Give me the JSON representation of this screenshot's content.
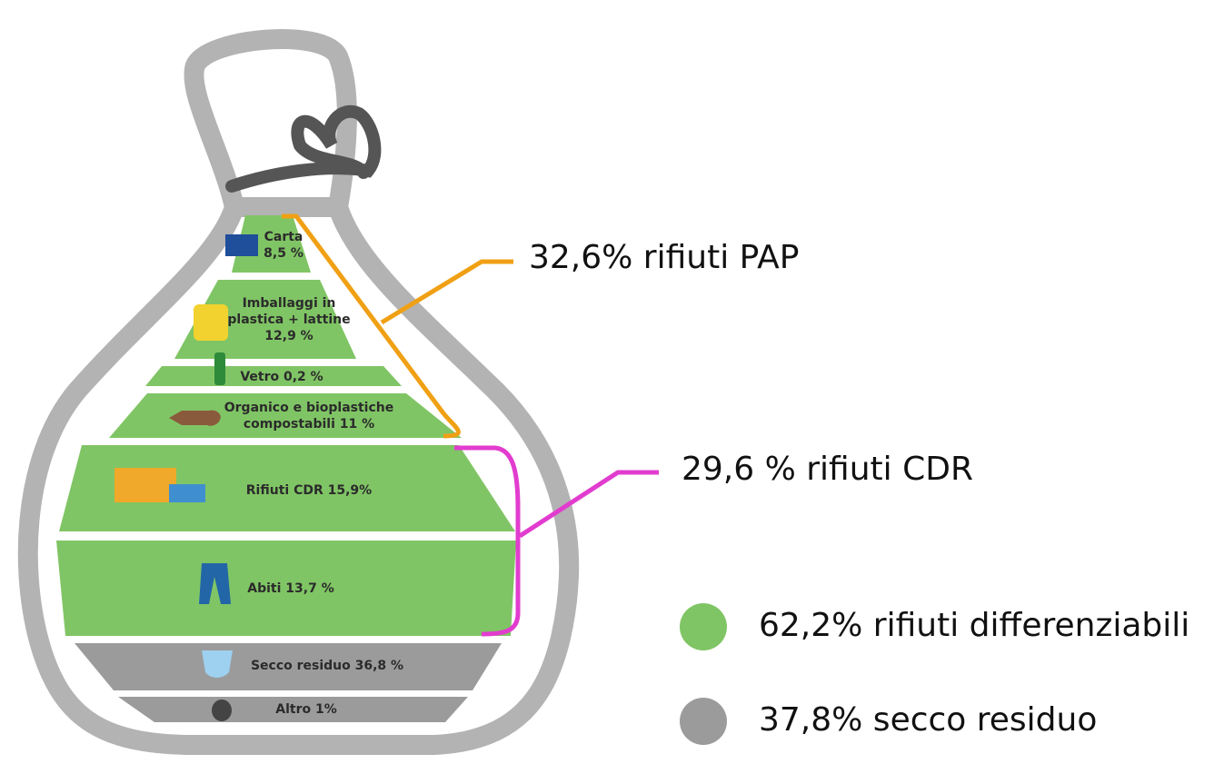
{
  "layers": [
    {
      "lines": [
        "Carta",
        "8,5 %"
      ]
    },
    {
      "lines": [
        "Imballaggi in",
        "plastica + lattine",
        "12,9 %"
      ]
    },
    {
      "lines": [
        "Vetro 0,2 %"
      ]
    },
    {
      "lines": [
        "Organico e bioplastiche",
        "compostabili 11 %"
      ]
    },
    {
      "lines": [
        "Rifiuti CDR 15,9%"
      ]
    },
    {
      "lines": [
        "Abiti 13,7 %"
      ]
    },
    {
      "lines": [
        "Secco residuo 36,8 %"
      ]
    },
    {
      "lines": [
        "Altro 1%"
      ]
    }
  ],
  "brackets": [
    {
      "label": "32,6% rifiuti PAP"
    },
    {
      "label": "29,6 % rifiuti CDR"
    }
  ],
  "legend": [
    {
      "label": "62,2% rifiuti differenziabili"
    },
    {
      "label": "37,8% secco residuo"
    }
  ]
}
